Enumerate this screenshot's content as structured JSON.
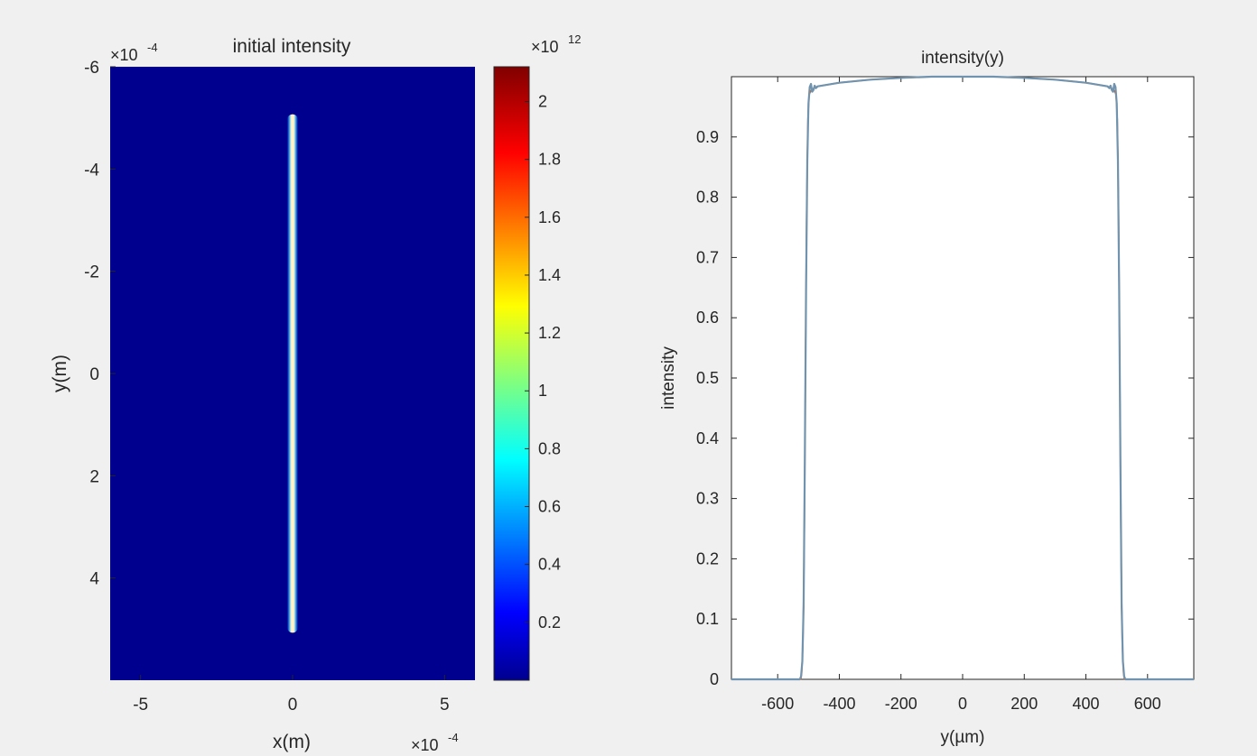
{
  "chart_data": [
    {
      "type": "heatmap",
      "title": "initial intensity",
      "xlabel": "x(m)",
      "ylabel": "y(m)",
      "x_exponent_label": "×10",
      "x_exponent": "-4",
      "y_exponent_label": "×10",
      "y_exponent": "-4",
      "xlim": [
        -6,
        6
      ],
      "ylim": [
        -6,
        6
      ],
      "y_reversed": true,
      "x_ticks": [
        -5,
        0,
        5
      ],
      "x_tick_labels": [
        "-5",
        "0",
        "5"
      ],
      "y_ticks": [
        -6,
        -4,
        -2,
        0,
        2,
        4
      ],
      "y_tick_labels": [
        "-6",
        "-4",
        "-2",
        "0",
        "2",
        "4"
      ],
      "colormap": "jet",
      "background_color": "#00008f",
      "stripe": {
        "x_center": 0,
        "y_start": -5,
        "y_end": 5,
        "peak": 2.1
      },
      "colorbar": {
        "exponent_label": "×10",
        "exponent": "12",
        "range": [
          0,
          2.12
        ],
        "ticks": [
          0.2,
          0.4,
          0.6,
          0.8,
          1,
          1.2,
          1.4,
          1.6,
          1.8,
          2
        ],
        "tick_labels": [
          "0.2",
          "0.4",
          "0.6",
          "0.8",
          "1",
          "1.2",
          "1.4",
          "1.6",
          "1.8",
          "2"
        ]
      }
    },
    {
      "type": "line",
      "title": "intensity(y)",
      "xlabel": "y(µm)",
      "ylabel": "intensity",
      "xlim": [
        -750,
        750
      ],
      "ylim": [
        0,
        1
      ],
      "x_ticks": [
        -600,
        -400,
        -200,
        0,
        200,
        400,
        600
      ],
      "x_tick_labels": [
        "-600",
        "-400",
        "-200",
        "0",
        "200",
        "400",
        "600"
      ],
      "y_ticks": [
        0,
        0.1,
        0.2,
        0.3,
        0.4,
        0.5,
        0.6,
        0.7,
        0.8,
        0.9
      ],
      "y_tick_labels": [
        "0",
        "0.1",
        "0.2",
        "0.3",
        "0.4",
        "0.5",
        "0.6",
        "0.7",
        "0.8",
        "0.9"
      ],
      "series": [
        {
          "color": "#d95319",
          "x": [
            -750,
            -525,
            -522,
            -518,
            -514,
            -510,
            -506,
            -502,
            -498,
            -494,
            -490,
            -485,
            -480,
            -470,
            -400,
            -300,
            -200,
            -100,
            0,
            100,
            200,
            300,
            400,
            470,
            480,
            485,
            490,
            494,
            498,
            502,
            506,
            510,
            514,
            518,
            522,
            525,
            750
          ],
          "y": [
            0,
            0,
            0.01,
            0.06,
            0.22,
            0.5,
            0.78,
            0.93,
            0.97,
            0.975,
            0.978,
            0.98,
            0.982,
            0.984,
            0.99,
            0.995,
            0.998,
            1.0,
            1.0,
            1.0,
            0.998,
            0.995,
            0.99,
            0.984,
            0.982,
            0.98,
            0.978,
            0.975,
            0.97,
            0.93,
            0.78,
            0.5,
            0.22,
            0.06,
            0.01,
            0,
            0
          ]
        },
        {
          "color": "#7193ad",
          "x": [
            -750,
            -528,
            -524,
            -520,
            -516,
            -512,
            -508,
            -504,
            -500,
            -496,
            -492,
            -488,
            -484,
            -480,
            -476,
            -470,
            -400,
            -300,
            -200,
            -100,
            0,
            100,
            200,
            300,
            400,
            470,
            476,
            480,
            484,
            488,
            492,
            496,
            500,
            504,
            508,
            512,
            516,
            520,
            524,
            528,
            750
          ],
          "y": [
            0,
            0,
            0.005,
            0.03,
            0.12,
            0.35,
            0.64,
            0.86,
            0.955,
            0.983,
            0.988,
            0.975,
            0.978,
            0.985,
            0.981,
            0.984,
            0.99,
            0.995,
            0.998,
            1.0,
            1.0,
            1.0,
            0.998,
            0.995,
            0.99,
            0.984,
            0.981,
            0.985,
            0.978,
            0.975,
            0.988,
            0.983,
            0.955,
            0.86,
            0.64,
            0.35,
            0.12,
            0.03,
            0.005,
            0,
            0
          ]
        }
      ]
    }
  ]
}
